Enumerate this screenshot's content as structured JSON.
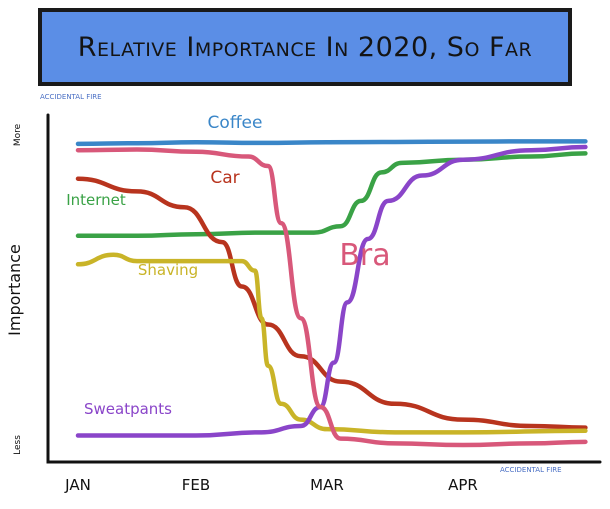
{
  "chart_data": {
    "type": "line",
    "title": "Relative Importance In 2020, So Far",
    "ylabel": "Importance",
    "y_top_label": "More",
    "y_bottom_label": "Less",
    "x_ticks": [
      "JAN",
      "FEB",
      "MAR",
      "APR"
    ],
    "ylim": [
      0,
      100
    ],
    "grid": false,
    "series": [
      {
        "name": "Coffee",
        "color": "#3a86c8",
        "points": [
          [
            0.0,
            95
          ],
          [
            0.5,
            95.2
          ],
          [
            1.0,
            95.5
          ],
          [
            1.5,
            95.3
          ],
          [
            2.0,
            95.5
          ],
          [
            2.5,
            95.6
          ],
          [
            3.0,
            95.7
          ],
          [
            3.5,
            95.8
          ],
          [
            3.9,
            95.8
          ]
        ]
      },
      {
        "name": "Car",
        "color": "#b8341e",
        "points": [
          [
            0.0,
            84
          ],
          [
            0.5,
            80
          ],
          [
            0.9,
            75
          ],
          [
            1.2,
            64
          ],
          [
            1.35,
            50
          ],
          [
            1.55,
            38
          ],
          [
            1.8,
            28
          ],
          [
            2.1,
            20
          ],
          [
            2.5,
            13
          ],
          [
            3.0,
            8
          ],
          [
            3.5,
            6
          ],
          [
            3.9,
            5.5
          ]
        ]
      },
      {
        "name": "Internet",
        "color": "#3aa246",
        "points": [
          [
            0.0,
            66
          ],
          [
            0.5,
            66
          ],
          [
            1.0,
            66.5
          ],
          [
            1.5,
            67
          ],
          [
            1.9,
            67
          ],
          [
            2.1,
            69
          ],
          [
            2.25,
            77
          ],
          [
            2.4,
            86
          ],
          [
            2.55,
            89
          ],
          [
            3.0,
            90
          ],
          [
            3.5,
            91
          ],
          [
            3.9,
            92
          ]
        ]
      },
      {
        "name": "Shaving",
        "color": "#c9b428",
        "points": [
          [
            0.0,
            57
          ],
          [
            0.3,
            60
          ],
          [
            0.5,
            58
          ],
          [
            0.8,
            58
          ],
          [
            1.1,
            58
          ],
          [
            1.35,
            58
          ],
          [
            1.45,
            55
          ],
          [
            1.5,
            40
          ],
          [
            1.55,
            25
          ],
          [
            1.65,
            13
          ],
          [
            1.8,
            8
          ],
          [
            2.0,
            5
          ],
          [
            2.5,
            4
          ],
          [
            3.0,
            4
          ],
          [
            3.9,
            4.5
          ]
        ]
      },
      {
        "name": "Bra",
        "color": "#d8587a",
        "points": [
          [
            0.0,
            93
          ],
          [
            0.5,
            93.2
          ],
          [
            1.0,
            92.5
          ],
          [
            1.4,
            91
          ],
          [
            1.55,
            88
          ],
          [
            1.65,
            70
          ],
          [
            1.8,
            40
          ],
          [
            1.95,
            12
          ],
          [
            2.1,
            2
          ],
          [
            2.5,
            0.5
          ],
          [
            3.0,
            0
          ],
          [
            3.5,
            0.5
          ],
          [
            3.9,
            1
          ]
        ]
      },
      {
        "name": "Sweatpants",
        "color": "#8a45c9",
        "points": [
          [
            0.0,
            3
          ],
          [
            0.5,
            3
          ],
          [
            1.0,
            3
          ],
          [
            1.5,
            4
          ],
          [
            1.8,
            6
          ],
          [
            1.95,
            12
          ],
          [
            2.05,
            26
          ],
          [
            2.15,
            45
          ],
          [
            2.3,
            65
          ],
          [
            2.45,
            77
          ],
          [
            2.7,
            85
          ],
          [
            3.0,
            90
          ],
          [
            3.5,
            93
          ],
          [
            3.9,
            94
          ]
        ]
      }
    ],
    "series_labels": [
      {
        "series": "Coffee",
        "text": "Coffee"
      },
      {
        "series": "Car",
        "text": "Car"
      },
      {
        "series": "Internet",
        "text": "Internet"
      },
      {
        "series": "Shaving",
        "text": "Shaving"
      },
      {
        "series": "Bra",
        "text": "Bra"
      },
      {
        "series": "Sweatpants",
        "text": "Sweatpants"
      }
    ]
  },
  "credits": {
    "top": "ACCIDENTAL FIRE",
    "bottom": "ACCIDENTAL FIRE"
  }
}
